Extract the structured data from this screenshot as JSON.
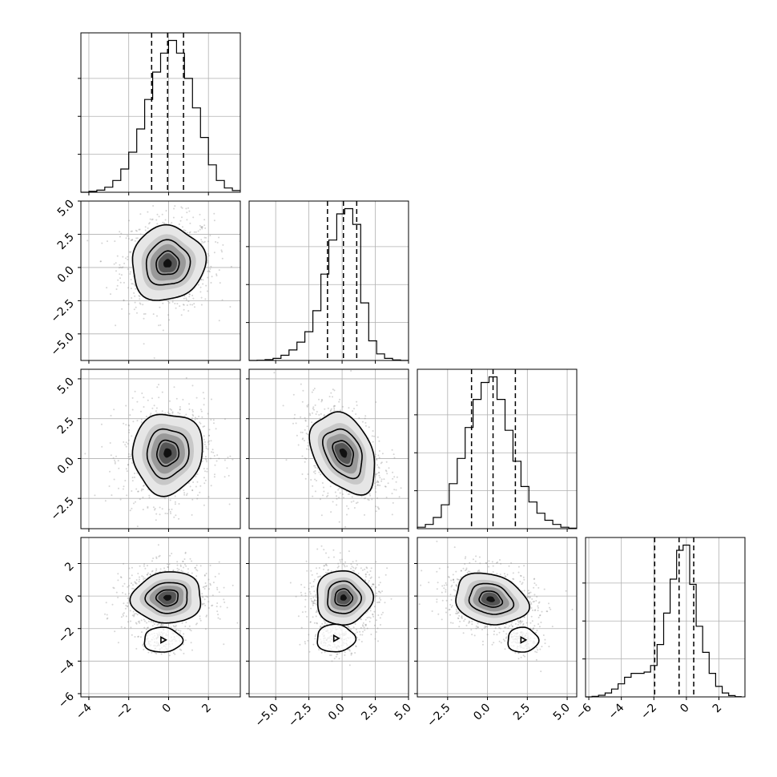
{
  "chart_data": {
    "type": "corner",
    "n_params": 4,
    "grid": true,
    "params": [
      {
        "index": 0,
        "range": [
          -4.4,
          3.6
        ],
        "ticks": [
          -4,
          -2,
          0,
          2
        ],
        "tick_labels": [
          "−4",
          "−2",
          "0",
          "2"
        ],
        "quantiles": [
          -0.85,
          -0.05,
          0.75
        ],
        "hist": {
          "edges": [
            -4.4,
            -4.0,
            -3.6,
            -3.2,
            -2.8,
            -2.4,
            -2.0,
            -1.6,
            -1.2,
            -0.8,
            -0.4,
            0.0,
            0.4,
            0.8,
            1.2,
            1.6,
            2.0,
            2.4,
            2.8,
            3.2,
            3.6
          ],
          "counts": [
            0,
            2,
            5,
            12,
            28,
            55,
            95,
            150,
            220,
            285,
            330,
            360,
            330,
            270,
            200,
            130,
            65,
            28,
            10,
            4
          ]
        }
      },
      {
        "index": 1,
        "range": [
          -7.0,
          5.0
        ],
        "ticks": [
          -5.0,
          -2.5,
          0.0,
          2.5,
          5.0
        ],
        "tick_labels": [
          "−5.0",
          "−2.5",
          "0.0",
          "2.5",
          "5.0"
        ],
        "quantiles": [
          -1.1,
          0.1,
          1.1
        ],
        "hist": {
          "edges": [
            -7.0,
            -6.4,
            -5.8,
            -5.2,
            -4.6,
            -4.0,
            -3.4,
            -2.8,
            -2.2,
            -1.6,
            -1.0,
            -0.4,
            0.2,
            0.8,
            1.4,
            2.0,
            2.6,
            3.2,
            3.8,
            4.4,
            5.0
          ],
          "counts": [
            0,
            1,
            3,
            8,
            20,
            40,
            70,
            110,
            190,
            330,
            460,
            560,
            580,
            520,
            220,
            75,
            25,
            8,
            2,
            0
          ]
        }
      },
      {
        "index": 2,
        "range": [
          -4.4,
          5.6
        ],
        "ticks": [
          -2.5,
          0.0,
          2.5,
          5.0
        ],
        "tick_labels": [
          "−2.5",
          "0.0",
          "2.5",
          "5.0"
        ],
        "quantiles": [
          -1.0,
          0.35,
          1.75
        ],
        "hist": {
          "edges": [
            -4.4,
            -3.9,
            -3.4,
            -2.9,
            -2.4,
            -1.9,
            -1.4,
            -0.9,
            -0.4,
            0.1,
            0.6,
            1.1,
            1.6,
            2.1,
            2.6,
            3.1,
            3.6,
            4.1,
            4.6,
            5.1,
            5.6
          ],
          "counts": [
            5,
            15,
            40,
            85,
            160,
            250,
            360,
            460,
            520,
            540,
            460,
            350,
            240,
            150,
            95,
            55,
            30,
            15,
            5,
            2
          ]
        }
      },
      {
        "index": 3,
        "range": [
          -6.2,
          3.6
        ],
        "ticks": [
          -6,
          -4,
          -2,
          0,
          2
        ],
        "tick_labels": [
          "−6",
          "−4",
          "−2",
          "0",
          "2"
        ],
        "quantiles": [
          -1.95,
          -0.45,
          0.45
        ],
        "hist": {
          "edges": [
            -6.2,
            -5.8,
            -5.4,
            -5.0,
            -4.6,
            -4.2,
            -3.8,
            -3.4,
            -3.0,
            -2.6,
            -2.2,
            -1.8,
            -1.4,
            -1.0,
            -0.6,
            -0.2,
            0.2,
            0.6,
            1.0,
            1.4,
            1.8,
            2.2,
            2.6,
            3.0,
            3.4
          ],
          "counts": [
            0,
            2,
            6,
            15,
            30,
            50,
            75,
            90,
            90,
            95,
            120,
            200,
            320,
            450,
            560,
            580,
            430,
            270,
            170,
            90,
            40,
            15,
            5,
            1
          ]
        }
      }
    ],
    "pairs": [
      {
        "row": 1,
        "col": 0,
        "center": [
          -0.05,
          0.3
        ],
        "sigma": [
          1.05,
          1.6
        ],
        "rho": 0.05,
        "tail": null
      },
      {
        "row": 2,
        "col": 0,
        "center": [
          -0.05,
          0.35
        ],
        "sigma": [
          1.0,
          1.45
        ],
        "rho": 0.05,
        "tail": null
      },
      {
        "row": 2,
        "col": 1,
        "center": [
          0.1,
          0.35
        ],
        "sigma": [
          1.4,
          1.45
        ],
        "rho": -0.35,
        "tail": null
      },
      {
        "row": 3,
        "col": 0,
        "center": [
          -0.05,
          -0.1
        ],
        "sigma": [
          1.0,
          0.9
        ],
        "rho": 0.05,
        "tail": {
          "center": [
            -0.3,
            -2.7
          ],
          "sigma": [
            0.6,
            0.45
          ]
        }
      },
      {
        "row": 3,
        "col": 1,
        "center": [
          0.1,
          -0.1
        ],
        "sigma": [
          1.2,
          0.95
        ],
        "rho": 0.0,
        "tail": {
          "center": [
            -0.5,
            -2.6
          ],
          "sigma": [
            0.9,
            0.5
          ]
        }
      },
      {
        "row": 3,
        "col": 2,
        "center": [
          0.2,
          -0.2
        ],
        "sigma": [
          1.3,
          0.9
        ],
        "rho": -0.2,
        "tail": {
          "center": [
            2.2,
            -2.7
          ],
          "sigma": [
            0.6,
            0.45
          ]
        }
      }
    ],
    "left_axis": {
      "rows": [
        {
          "row": 1,
          "ticks": [
            -5.0,
            -2.5,
            0.0,
            2.5,
            5.0
          ],
          "tick_labels": [
            "−5.0",
            "−2.5",
            "0.0",
            "2.5",
            "5.0"
          ]
        },
        {
          "row": 2,
          "ticks": [
            -2.5,
            0.0,
            2.5,
            5.0
          ],
          "tick_labels": [
            "−2.5",
            "0.0",
            "2.5",
            "5.0"
          ]
        },
        {
          "row": 3,
          "ticks": [
            -6,
            -4,
            -2,
            0,
            2
          ],
          "tick_labels": [
            "−6",
            "−4",
            "−2",
            "0",
            "2"
          ]
        }
      ]
    }
  }
}
